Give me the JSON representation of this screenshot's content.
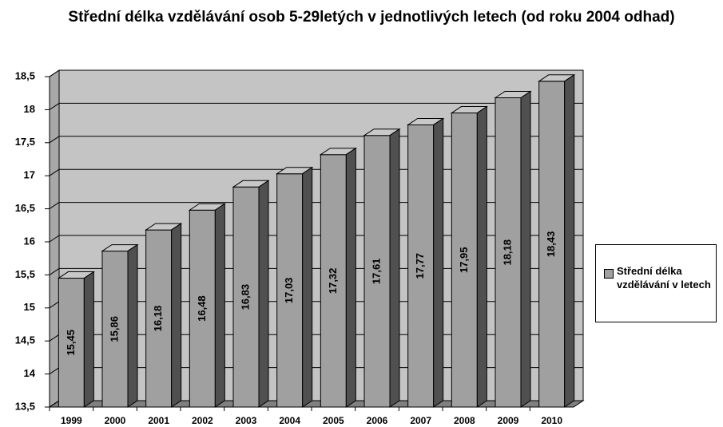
{
  "chart_data": {
    "type": "bar3d",
    "title": "Střední délka vzdělávání osob 5-29letých v jednotlivých letech (od roku 2004 odhad)",
    "categories": [
      "1999",
      "2000",
      "2001",
      "2002",
      "2003",
      "2004",
      "2005",
      "2006",
      "2007",
      "2008",
      "2009",
      "2010"
    ],
    "series": [
      {
        "name": "Střední délka vzdělávání v letech",
        "color": "#a0a0a0",
        "values": [
          15.45,
          15.86,
          16.18,
          16.48,
          16.83,
          17.03,
          17.32,
          17.61,
          17.77,
          17.95,
          18.18,
          18.43
        ],
        "value_labels": [
          "15,45",
          "15,86",
          "16,18",
          "16,48",
          "16,83",
          "17,03",
          "17,32",
          "17,61",
          "17,77",
          "17,95",
          "18,18",
          "18,43"
        ]
      }
    ],
    "ylim": [
      13.5,
      18.5
    ],
    "yticks": [
      {
        "value": 13.5,
        "label": "13,5"
      },
      14,
      {
        "value": 14.5,
        "label": "14,5"
      },
      15,
      {
        "value": 15.5,
        "label": "15,5"
      },
      16,
      {
        "value": 16.5,
        "label": "16,5"
      },
      17,
      {
        "value": 17.5,
        "label": "17,5"
      },
      18,
      {
        "value": 18.5,
        "label": "18,5"
      }
    ],
    "grid": true,
    "legend": "right"
  }
}
